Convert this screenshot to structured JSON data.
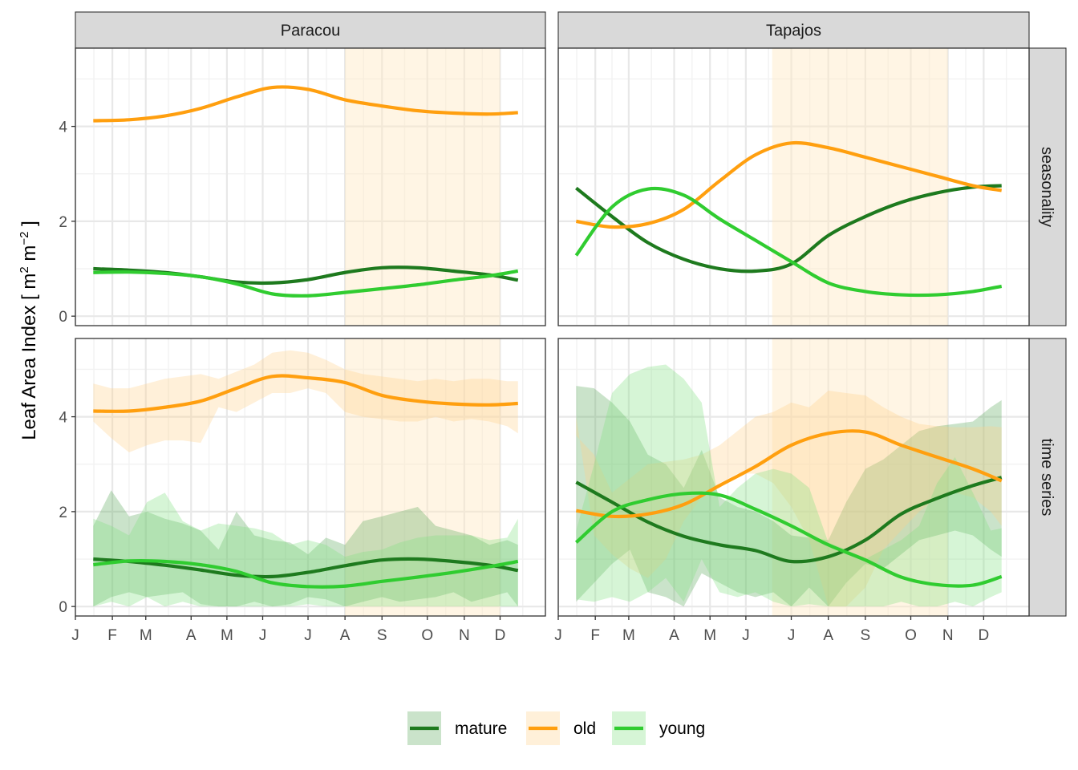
{
  "chart_data": {
    "type": "line",
    "ylabel": "Leaf Area Index [ m",
    "ylabel_sup1": "2",
    "ylabel_mid": " m",
    "ylabel_sup2": "−2",
    "ylabel_end": " ]",
    "columns": [
      "Paracou",
      "Tapajos"
    ],
    "rows": [
      "seasonality",
      "time series"
    ],
    "x_ticks": [
      {
        "label": "J",
        "doy": 1
      },
      {
        "label": "F",
        "doy": 32
      },
      {
        "label": "M",
        "doy": 60
      },
      {
        "label": "A",
        "doy": 98
      },
      {
        "label": "M",
        "doy": 128
      },
      {
        "label": "J",
        "doy": 158
      },
      {
        "label": "J",
        "doy": 196
      },
      {
        "label": "A",
        "doy": 227
      },
      {
        "label": "S",
        "doy": 258
      },
      {
        "label": "O",
        "doy": 296
      },
      {
        "label": "N",
        "doy": 327
      },
      {
        "label": "D",
        "doy": 357
      }
    ],
    "xlim": [
      1,
      395
    ],
    "ylim": [
      -0.2,
      5.65
    ],
    "y_ticks": [
      0,
      2,
      4
    ],
    "grid": true,
    "legend_position": "bottom",
    "legend": [
      {
        "label": "mature",
        "color": "#1e7a1e",
        "fill": "#5aa85a"
      },
      {
        "label": "old",
        "color": "#ff9f0f",
        "fill": "#ffcf8a"
      },
      {
        "label": "young",
        "color": "#30cc30",
        "fill": "#80e080"
      }
    ],
    "series_colors": {
      "mature": "#1e7a1e",
      "old": "#ff9f0f",
      "young": "#30cc30"
    },
    "band_colors": {
      "mature": "#5aa85a",
      "old": "#ffcf8a",
      "young": "#80e080"
    },
    "panels": [
      {
        "site": "Paracou",
        "row": "seasonality",
        "dry_season": [
          227,
          357
        ],
        "series": [
          {
            "name": "mature",
            "x": [
              16,
              46,
              76,
              106,
              136,
              166,
              196,
              227,
              258,
              288,
              318,
              348,
              372
            ],
            "y": [
              1.0,
              0.97,
              0.92,
              0.83,
              0.72,
              0.7,
              0.77,
              0.92,
              1.02,
              1.02,
              0.95,
              0.87,
              0.76
            ]
          },
          {
            "name": "old",
            "x": [
              16,
              46,
              76,
              106,
              136,
              166,
              196,
              227,
              258,
              288,
              318,
              348,
              372
            ],
            "y": [
              4.12,
              4.14,
              4.22,
              4.38,
              4.62,
              4.82,
              4.78,
              4.56,
              4.43,
              4.33,
              4.28,
              4.26,
              4.29
            ]
          },
          {
            "name": "young",
            "x": [
              16,
              46,
              76,
              106,
              136,
              166,
              196,
              227,
              258,
              288,
              318,
              348,
              372
            ],
            "y": [
              0.92,
              0.93,
              0.9,
              0.83,
              0.68,
              0.47,
              0.43,
              0.5,
              0.58,
              0.66,
              0.76,
              0.85,
              0.95
            ]
          }
        ]
      },
      {
        "site": "Tapajos",
        "row": "seasonality",
        "dry_season": [
          180,
          327
        ],
        "series": [
          {
            "name": "mature",
            "x": [
              16,
              46,
              76,
              106,
              136,
              166,
              196,
              227,
              258,
              288,
              318,
              348,
              372
            ],
            "y": [
              2.7,
              2.1,
              1.55,
              1.2,
              1.0,
              0.95,
              1.1,
              1.7,
              2.1,
              2.4,
              2.6,
              2.72,
              2.75
            ]
          },
          {
            "name": "old",
            "x": [
              16,
              46,
              76,
              106,
              136,
              166,
              196,
              227,
              258,
              288,
              318,
              348,
              372
            ],
            "y": [
              2.0,
              1.88,
              1.95,
              2.25,
              2.85,
              3.4,
              3.65,
              3.55,
              3.35,
              3.15,
              2.95,
              2.75,
              2.65
            ]
          },
          {
            "name": "young",
            "x": [
              16,
              46,
              76,
              106,
              136,
              166,
              196,
              227,
              258,
              288,
              318,
              348,
              372
            ],
            "y": [
              1.28,
              2.3,
              2.68,
              2.55,
              2.05,
              1.6,
              1.15,
              0.7,
              0.52,
              0.45,
              0.45,
              0.52,
              0.63
            ]
          }
        ]
      },
      {
        "site": "Paracou",
        "row": "time series",
        "dry_season": [
          227,
          357
        ],
        "series": [
          {
            "name": "mature",
            "x": [
              16,
              46,
              76,
              106,
              136,
              166,
              196,
              227,
              258,
              288,
              318,
              348,
              372
            ],
            "y": [
              1.0,
              0.95,
              0.87,
              0.77,
              0.66,
              0.63,
              0.72,
              0.86,
              0.98,
              1.0,
              0.95,
              0.87,
              0.76
            ],
            "band_x": [
              16,
              31,
              46,
              61,
              76,
              91,
              106,
              121,
              136,
              151,
              166,
              181,
              196,
              211,
              227,
              242,
              258,
              273,
              288,
              303,
              318,
              333,
              348,
              363,
              372
            ],
            "band_lo": [
              0.0,
              0.2,
              0.3,
              0.2,
              0.25,
              0.3,
              0.05,
              0.0,
              0.0,
              0.1,
              0.0,
              0.05,
              0.2,
              0.15,
              0.0,
              0.1,
              0.2,
              0.1,
              0.15,
              0.2,
              0.3,
              0.1,
              0.2,
              0.3,
              0.0
            ],
            "band_hi": [
              1.7,
              2.45,
              1.9,
              2.0,
              1.85,
              1.75,
              1.6,
              1.2,
              2.0,
              1.5,
              1.4,
              1.35,
              1.1,
              1.45,
              1.3,
              1.8,
              1.9,
              2.0,
              2.1,
              1.7,
              1.6,
              1.5,
              1.3,
              1.4,
              1.3
            ]
          },
          {
            "name": "old",
            "x": [
              16,
              46,
              76,
              106,
              136,
              166,
              196,
              227,
              258,
              288,
              318,
              348,
              372
            ],
            "y": [
              4.12,
              4.12,
              4.2,
              4.33,
              4.6,
              4.85,
              4.82,
              4.72,
              4.45,
              4.33,
              4.27,
              4.25,
              4.28
            ],
            "band_x": [
              16,
              31,
              46,
              61,
              76,
              91,
              106,
              121,
              136,
              151,
              166,
              181,
              196,
              211,
              227,
              242,
              258,
              273,
              288,
              303,
              318,
              333,
              348,
              363,
              372
            ],
            "band_lo": [
              3.9,
              3.55,
              3.25,
              3.4,
              3.5,
              3.5,
              3.45,
              4.2,
              4.1,
              4.3,
              4.5,
              4.5,
              4.6,
              4.5,
              4.1,
              4.0,
              3.95,
              3.9,
              3.9,
              4.0,
              3.9,
              3.95,
              3.9,
              3.8,
              3.65
            ],
            "band_hi": [
              4.7,
              4.6,
              4.6,
              4.7,
              4.8,
              4.85,
              4.9,
              4.8,
              4.95,
              5.1,
              5.35,
              5.4,
              5.35,
              5.2,
              5.0,
              4.9,
              4.85,
              4.8,
              4.75,
              4.8,
              4.75,
              4.8,
              4.8,
              4.75,
              4.75
            ]
          },
          {
            "name": "young",
            "x": [
              16,
              46,
              76,
              106,
              136,
              166,
              196,
              227,
              258,
              288,
              318,
              348,
              372
            ],
            "y": [
              0.88,
              0.96,
              0.95,
              0.88,
              0.74,
              0.5,
              0.42,
              0.43,
              0.53,
              0.62,
              0.72,
              0.84,
              0.95
            ],
            "band_x": [
              16,
              31,
              46,
              61,
              76,
              91,
              106,
              121,
              136,
              151,
              166,
              181,
              196,
              211,
              227,
              242,
              258,
              273,
              288,
              303,
              318,
              333,
              348,
              363,
              372
            ],
            "band_lo": [
              0.0,
              0.1,
              0.0,
              0.2,
              0.0,
              0.1,
              0.0,
              0.0,
              0.0,
              0.0,
              0.0,
              0.0,
              0.05,
              0.0,
              0.0,
              0.0,
              0.0,
              0.0,
              0.0,
              0.0,
              0.0,
              0.0,
              0.0,
              0.0,
              0.0
            ],
            "band_hi": [
              1.85,
              1.7,
              1.5,
              2.2,
              2.4,
              1.8,
              1.6,
              1.75,
              1.7,
              1.65,
              1.55,
              1.3,
              1.4,
              1.3,
              1.05,
              1.15,
              1.2,
              1.35,
              1.45,
              1.5,
              1.5,
              1.5,
              1.4,
              1.45,
              1.85
            ]
          }
        ]
      },
      {
        "site": "Tapajos",
        "row": "time series",
        "dry_season": [
          180,
          327
        ],
        "series": [
          {
            "name": "mature",
            "x": [
              16,
              46,
              76,
              106,
              136,
              166,
              196,
              227,
              258,
              288,
              318,
              348,
              372
            ],
            "y": [
              2.62,
              2.2,
              1.78,
              1.48,
              1.3,
              1.18,
              0.95,
              1.05,
              1.4,
              1.95,
              2.28,
              2.55,
              2.72
            ],
            "band_x": [
              16,
              31,
              46,
              61,
              76,
              91,
              106,
              121,
              136,
              151,
              166,
              181,
              196,
              211,
              227,
              242,
              258,
              273,
              288,
              303,
              318,
              333,
              348,
              363,
              372
            ],
            "band_lo": [
              0.1,
              0.5,
              0.9,
              1.2,
              0.3,
              0.2,
              0.0,
              0.7,
              0.5,
              0.3,
              0.2,
              0.3,
              0.0,
              0.4,
              0.0,
              0.5,
              0.9,
              0.8,
              1.1,
              1.4,
              1.5,
              1.6,
              1.5,
              1.2,
              1.05
            ],
            "band_hi": [
              4.65,
              4.6,
              4.3,
              3.9,
              3.2,
              3.0,
              2.5,
              3.3,
              2.3,
              2.1,
              2.0,
              1.8,
              1.5,
              1.45,
              1.4,
              2.2,
              2.9,
              3.1,
              3.4,
              3.7,
              3.8,
              3.85,
              3.9,
              4.2,
              4.35
            ]
          },
          {
            "name": "old",
            "x": [
              16,
              46,
              76,
              106,
              136,
              166,
              196,
              227,
              258,
              288,
              318,
              348,
              372
            ],
            "y": [
              2.02,
              1.9,
              1.95,
              2.15,
              2.55,
              2.95,
              3.4,
              3.65,
              3.68,
              3.4,
              3.15,
              2.9,
              2.65
            ],
            "band_x": [
              16,
              31,
              46,
              61,
              76,
              91,
              106,
              121,
              136,
              151,
              166,
              181,
              196,
              211,
              227,
              242,
              258,
              273,
              288,
              303,
              318,
              333,
              348,
              363,
              372
            ],
            "band_lo": [
              4.0,
              1.5,
              1.1,
              0.8,
              0.6,
              1.0,
              1.8,
              2.3,
              2.6,
              2.8,
              2.8,
              2.6,
              2.1,
              1.4,
              0.0,
              0.0,
              0.4,
              1.2,
              1.6,
              2.0,
              2.3,
              2.4,
              2.3,
              2.0,
              1.7
            ],
            "band_hi": [
              3.6,
              3.2,
              2.4,
              2.7,
              3.0,
              3.05,
              3.1,
              3.2,
              3.4,
              3.7,
              4.0,
              4.1,
              4.3,
              4.2,
              4.55,
              4.5,
              4.45,
              4.2,
              4.0,
              3.85,
              3.8,
              3.78,
              3.78,
              3.8,
              3.78
            ]
          },
          {
            "name": "young",
            "x": [
              16,
              46,
              76,
              106,
              136,
              166,
              196,
              227,
              258,
              288,
              318,
              348,
              372
            ],
            "y": [
              1.35,
              2.0,
              2.25,
              2.38,
              2.35,
              2.05,
              1.7,
              1.3,
              0.98,
              0.62,
              0.46,
              0.45,
              0.63
            ],
            "band_x": [
              16,
              31,
              46,
              61,
              76,
              91,
              106,
              121,
              136,
              151,
              166,
              181,
              196,
              211,
              227,
              242,
              258,
              273,
              288,
              303,
              318,
              333,
              348,
              363,
              372
            ],
            "band_lo": [
              0.15,
              0.1,
              0.2,
              0.1,
              0.3,
              0.6,
              0.1,
              1.0,
              0.3,
              0.2,
              0.3,
              0.1,
              0.0,
              0.05,
              0.0,
              0.0,
              0.0,
              0.0,
              0.1,
              0.0,
              0.0,
              0.1,
              0.0,
              0.2,
              0.3
            ],
            "band_hi": [
              1.6,
              3.0,
              4.5,
              4.9,
              5.05,
              5.1,
              4.8,
              4.3,
              2.1,
              2.5,
              2.8,
              2.9,
              2.8,
              2.5,
              1.35,
              1.2,
              1.0,
              1.2,
              1.4,
              1.7,
              2.6,
              3.15,
              2.4,
              1.6,
              1.65
            ]
          }
        ]
      }
    ]
  }
}
